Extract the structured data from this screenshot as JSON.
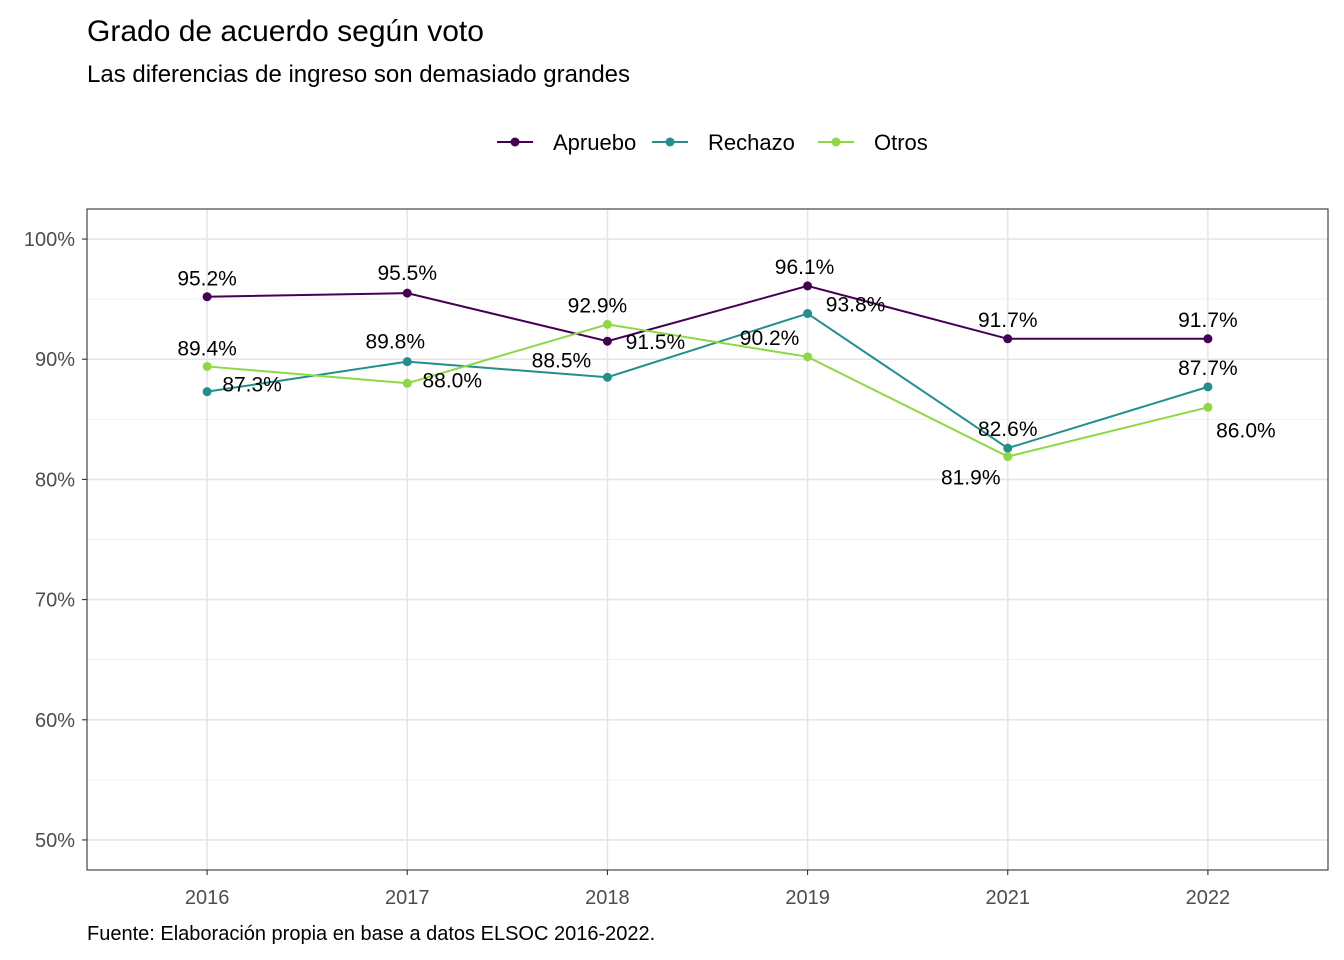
{
  "title": "Grado de acuerdo según voto",
  "subtitle": "Las diferencias de ingreso son demasiado grandes",
  "caption": "Fuente: Elaboración propia en base a datos ELSOC 2016-2022.",
  "chart_data": {
    "type": "line",
    "title": "Grado de acuerdo según voto",
    "subtitle": "Las diferencias de ingreso son demasiado grandes",
    "xlabel": "",
    "ylabel": "",
    "categories": [
      "2016",
      "2017",
      "2018",
      "2019",
      "2021",
      "2022"
    ],
    "ylim": [
      0.475,
      1.025
    ],
    "yticks": [
      0.5,
      0.6,
      0.7,
      0.8,
      0.9,
      1.0
    ],
    "ytick_labels": [
      "50%",
      "60%",
      "70%",
      "80%",
      "90%",
      "100%"
    ],
    "grid": true,
    "legend_position": "top",
    "series": [
      {
        "name": "Apruebo",
        "color": "#440154",
        "values": [
          0.952,
          0.955,
          0.915,
          0.961,
          0.917,
          0.917
        ],
        "labels": [
          "95.2%",
          "95.5%",
          "91.5%",
          "96.1%",
          "91.7%",
          "91.7%"
        ]
      },
      {
        "name": "Rechazo",
        "color": "#21908C",
        "values": [
          0.873,
          0.898,
          0.885,
          0.938,
          0.826,
          0.877
        ],
        "labels": [
          "87.3%",
          "89.8%",
          "88.5%",
          "93.8%",
          "82.6%",
          "87.7%"
        ]
      },
      {
        "name": "Otros",
        "color": "#8FD744",
        "values": [
          0.894,
          0.88,
          0.929,
          0.902,
          0.819,
          0.86
        ],
        "labels": [
          "89.4%",
          "88.0%",
          "92.9%",
          "90.2%",
          "81.9%",
          "86.0%"
        ]
      }
    ]
  }
}
